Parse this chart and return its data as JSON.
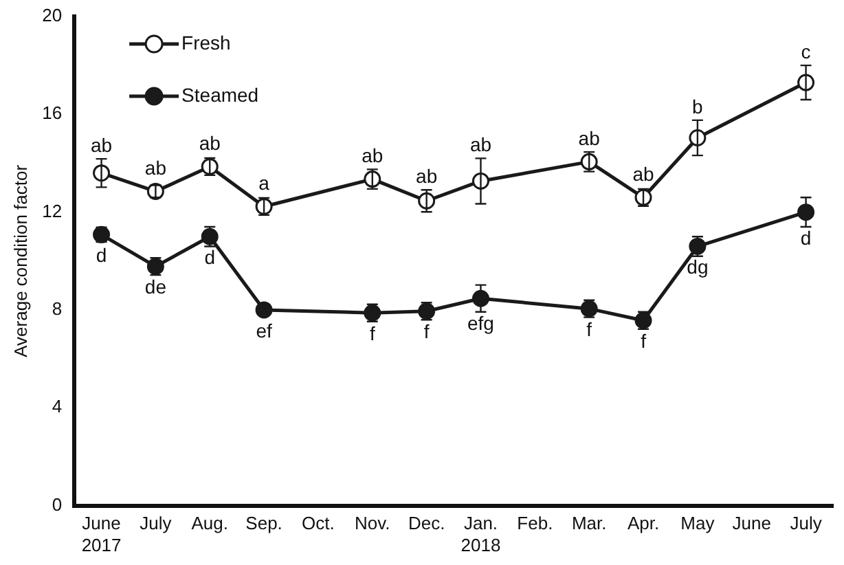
{
  "chart_data": {
    "type": "line",
    "ylabel": "Average condition factor",
    "categories": [
      "June 2017",
      "July",
      "Aug.",
      "Sep.",
      "Oct.",
      "Nov.",
      "Dec.",
      "Jan. 2018",
      "Feb.",
      "Mar.",
      "Apr.",
      "May",
      "June",
      "July"
    ],
    "series": [
      {
        "name": "Fresh",
        "color": "#1a1a1a",
        "marker": "circle",
        "values": [
          13.6,
          12.85,
          13.86,
          12.23,
          null,
          13.35,
          12.46,
          13.27,
          null,
          14.06,
          12.6,
          15.04,
          null,
          17.3
        ],
        "errors": [
          0.58,
          0.25,
          0.35,
          0.35,
          null,
          0.4,
          0.45,
          0.93,
          null,
          0.4,
          0.35,
          0.72,
          null,
          0.7
        ],
        "value_labels": [
          "ab",
          "ab",
          "ab",
          "a",
          null,
          "ab",
          "ab",
          "ab",
          null,
          "ab",
          "ab",
          "b",
          null,
          "c"
        ]
      },
      {
        "name": "Steamed",
        "color": "#1a1a1a",
        "marker": "circle",
        "values": [
          11.08,
          9.78,
          11.0,
          8.0,
          null,
          7.88,
          7.95,
          8.47,
          null,
          8.05,
          7.57,
          10.6,
          null,
          12.0
        ],
        "errors": [
          0.3,
          0.35,
          0.4,
          0.1,
          null,
          0.35,
          0.35,
          0.55,
          null,
          0.35,
          0.35,
          0.4,
          null,
          0.6
        ],
        "value_labels": [
          "d",
          "de",
          "d",
          "ef",
          null,
          "f",
          "f",
          "efg",
          null,
          "f",
          "f",
          "dg",
          null,
          "d"
        ]
      }
    ],
    "ylim": [
      0,
      20
    ],
    "yticks": [
      0,
      4,
      8,
      12,
      16,
      20
    ],
    "grid": false,
    "legend": "top left",
    "line_style": "solid"
  }
}
